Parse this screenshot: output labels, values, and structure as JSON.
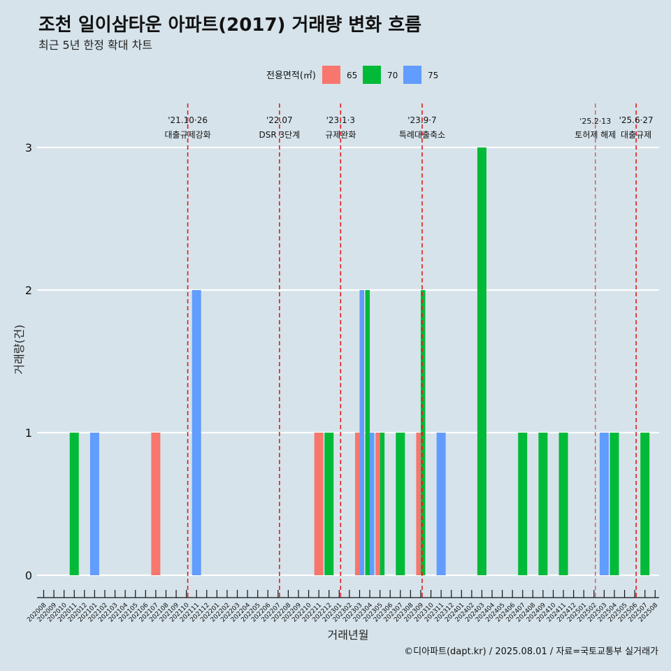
{
  "chart_data": {
    "type": "bar",
    "title": "조천 일이삼타운 아파트(2017) 거래량 변화 흐름",
    "subtitle": "최근 5년 한정 확대 차트",
    "xlabel": "거래년월",
    "ylabel": "거래량(건)",
    "ylim": [
      0,
      3
    ],
    "yticks": [
      0,
      1,
      2,
      3
    ],
    "grid": "horizontal",
    "legend_position": "top",
    "legend_title": "전용면적(㎡)",
    "caption": "©디아파트(dapt.kr) / 2025.08.01 / 자료=국토교통부 실거래가",
    "categories": [
      "202008",
      "202009",
      "202010",
      "202011",
      "202012",
      "202101",
      "202102",
      "202103",
      "202104",
      "202105",
      "202106",
      "202107",
      "202108",
      "202109",
      "202110",
      "202111",
      "202112",
      "202201",
      "202202",
      "202203",
      "202204",
      "202205",
      "202206",
      "202207",
      "202208",
      "202209",
      "202210",
      "202211",
      "202212",
      "202301",
      "202302",
      "202303",
      "202304",
      "202305",
      "202306",
      "202307",
      "202308",
      "202309",
      "202310",
      "202311",
      "202312",
      "202401",
      "202402",
      "202403",
      "202404",
      "202405",
      "202406",
      "202407",
      "202408",
      "202409",
      "202410",
      "202411",
      "202412",
      "202501",
      "202502",
      "202503",
      "202504",
      "202505",
      "202506",
      "202507",
      "202508"
    ],
    "series": [
      {
        "name": "65",
        "color": "#f8766d",
        "values": [
          0,
          0,
          0,
          0,
          0,
          0,
          0,
          0,
          0,
          0,
          0,
          1,
          0,
          0,
          0,
          0,
          0,
          0,
          0,
          0,
          0,
          0,
          0,
          0,
          0,
          0,
          0,
          1,
          0,
          0,
          0,
          1,
          0,
          1,
          0,
          0,
          0,
          1,
          0,
          0,
          0,
          0,
          0,
          0,
          0,
          0,
          0,
          0,
          0,
          0,
          0,
          0,
          0,
          0,
          0,
          0,
          0,
          0,
          0,
          0,
          0
        ]
      },
      {
        "name": "70",
        "color": "#00ba38",
        "values": [
          0,
          0,
          0,
          1,
          0,
          0,
          0,
          0,
          0,
          0,
          0,
          0,
          0,
          0,
          0,
          0,
          0,
          0,
          0,
          0,
          0,
          0,
          0,
          0,
          0,
          0,
          0,
          0,
          1,
          0,
          0,
          0,
          2,
          1,
          0,
          1,
          0,
          2,
          0,
          0,
          0,
          0,
          0,
          3,
          0,
          0,
          0,
          1,
          0,
          1,
          0,
          1,
          0,
          0,
          0,
          0,
          1,
          0,
          0,
          1,
          0
        ]
      },
      {
        "name": "75",
        "color": "#619cff",
        "values": [
          0,
          0,
          0,
          0,
          0,
          1,
          0,
          0,
          0,
          0,
          0,
          0,
          0,
          0,
          0,
          2,
          0,
          0,
          0,
          0,
          0,
          0,
          0,
          0,
          0,
          0,
          0,
          0,
          0,
          0,
          0,
          2,
          1,
          0,
          0,
          0,
          0,
          0,
          0,
          1,
          0,
          0,
          0,
          0,
          0,
          0,
          0,
          0,
          0,
          0,
          0,
          0,
          0,
          0,
          0,
          1,
          0,
          0,
          0,
          0,
          0
        ]
      }
    ],
    "annotations": [
      {
        "date": "202110",
        "line1": "'21.10·26",
        "line2": "대출규제강화"
      },
      {
        "date": "202207",
        "line1": "'22.07",
        "line2": "DSR 3단계"
      },
      {
        "date": "202301",
        "line1": "'23.1·3",
        "line2": "규제완화"
      },
      {
        "date": "202309",
        "line1": "'23.9·7",
        "line2": "특례대출축소"
      },
      {
        "date": "202502",
        "line1": "'25.2·13",
        "line2": "토허제 해제"
      },
      {
        "date": "202506",
        "line1": "'25.6·27",
        "line2": "대출규제"
      }
    ]
  }
}
